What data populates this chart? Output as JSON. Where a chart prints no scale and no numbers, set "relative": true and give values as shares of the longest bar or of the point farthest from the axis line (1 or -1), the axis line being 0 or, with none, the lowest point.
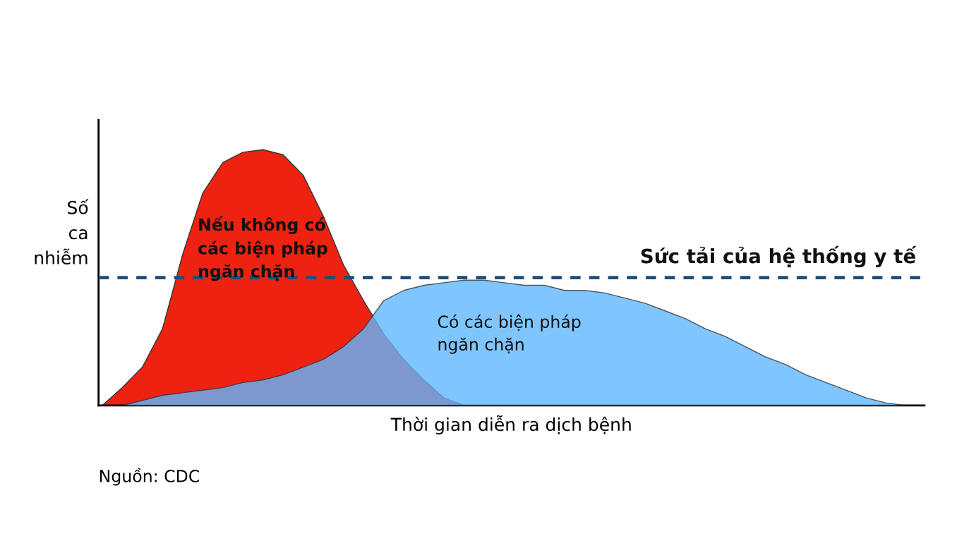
{
  "chart_data": {
    "type": "area",
    "relative": true,
    "xlabel": "Thời gian diễn ra dịch bệnh",
    "ylabel": "Số\nca\nnhiễm",
    "categories": [
      null,
      null,
      null,
      null,
      null,
      null,
      null,
      null,
      null,
      null,
      null,
      null,
      null,
      null,
      null,
      null,
      null,
      null,
      null,
      null,
      null,
      null,
      null,
      null,
      null,
      null,
      null,
      null,
      null,
      null,
      null,
      null,
      null,
      null,
      null,
      null,
      null,
      null,
      null,
      null,
      null
    ],
    "series": [
      {
        "name": "Nếu không có\ncác biện pháp\nngăn chặn",
        "color": "#ee2211",
        "values": [
          0,
          0.07,
          0.15,
          0.3,
          0.59,
          0.83,
          0.95,
          0.99,
          1,
          0.98,
          0.9,
          0.74,
          0.55,
          0.41,
          0.28,
          0.18,
          0.1,
          0.03,
          0,
          0,
          0,
          0,
          0,
          0,
          0,
          0,
          0,
          0,
          0,
          0,
          0,
          0,
          0,
          0,
          0,
          0,
          0,
          0,
          0,
          0,
          0
        ]
      },
      {
        "name": "Có các biện pháp\nngăn chặn",
        "color": "#5fb7fe",
        "values": [
          0,
          0,
          0.02,
          0.04,
          0.05,
          0.06,
          0.07,
          0.09,
          0.1,
          0.12,
          0.15,
          0.18,
          0.23,
          0.3,
          0.41,
          0.45,
          0.47,
          0.48,
          0.49,
          0.49,
          0.48,
          0.47,
          0.47,
          0.45,
          0.45,
          0.44,
          0.42,
          0.4,
          0.37,
          0.34,
          0.3,
          0.27,
          0.23,
          0.19,
          0.16,
          0.12,
          0.09,
          0.06,
          0.03,
          0.01,
          0
        ]
      }
    ],
    "ref_lines": [
      {
        "axis": "y",
        "value": 0.5,
        "label": "Sức tải của hệ thống y tế",
        "color": "#1f4e79",
        "line_style": "dashed"
      }
    ],
    "annotations": [
      "Nguồn: CDC"
    ]
  }
}
